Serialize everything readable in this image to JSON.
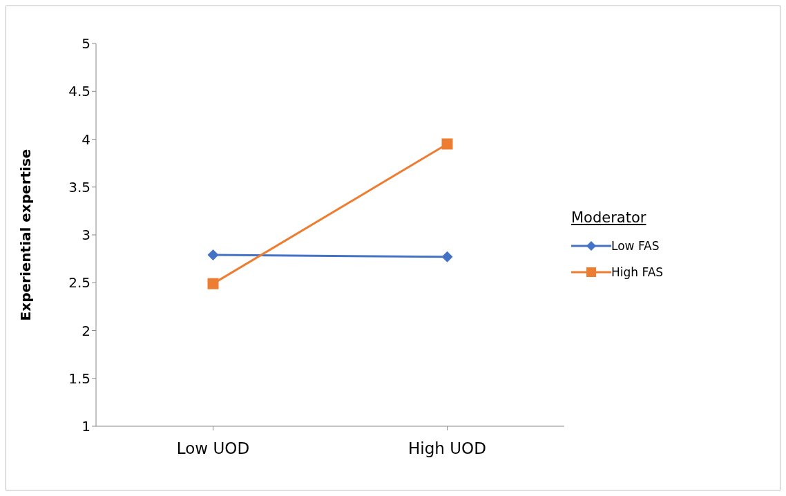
{
  "chart_data": {
    "type": "line",
    "ylabel": "Experiential expertise",
    "legend_title": "Moderator",
    "categories": [
      "Low UOD",
      "High UOD"
    ],
    "series": [
      {
        "name": "Low FAS",
        "color": "#4472c4",
        "marker": "diamond",
        "values": [
          2.79,
          2.77
        ]
      },
      {
        "name": "High FAS",
        "color": "#ed7d31",
        "marker": "square",
        "values": [
          2.49,
          3.95
        ]
      }
    ],
    "ylim": [
      1,
      5
    ],
    "yticks": [
      1,
      1.5,
      2,
      2.5,
      3,
      3.5,
      4,
      4.5,
      5
    ],
    "grid": false,
    "legend": "right"
  }
}
